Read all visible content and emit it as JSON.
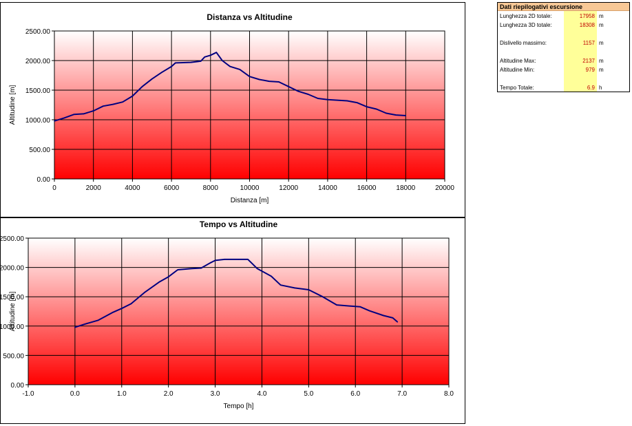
{
  "chart_data": [
    {
      "type": "line",
      "title": "Distanza vs Altitudine",
      "xlabel": "Distanza [m]",
      "ylabel": "Altitudine [m]",
      "xlim": [
        0,
        20000
      ],
      "ylim": [
        0,
        2500
      ],
      "x_ticks": [
        "0",
        "2000",
        "4000",
        "6000",
        "8000",
        "10000",
        "12000",
        "14000",
        "16000",
        "18000",
        "20000"
      ],
      "y_ticks": [
        "0.00",
        "500.00",
        "1000.00",
        "1500.00",
        "2000.00",
        "2500.00"
      ],
      "grid": true,
      "line_color": "#000080",
      "series": [
        {
          "x": [
            0,
            500,
            1000,
            1500,
            2000,
            2500,
            3000,
            3500,
            4000,
            4500,
            5000,
            5500,
            6000,
            6200,
            7000,
            7500,
            7700,
            8000,
            8300,
            8600,
            9000,
            9500,
            10000,
            10500,
            11000,
            11500,
            12000,
            12500,
            13000,
            13500,
            14000,
            14500,
            15000,
            15500,
            16000,
            16500,
            17000,
            17500,
            18000
          ],
          "y": [
            979,
            1030,
            1090,
            1100,
            1150,
            1230,
            1260,
            1300,
            1400,
            1560,
            1690,
            1800,
            1900,
            1960,
            1970,
            1990,
            2060,
            2090,
            2137,
            2000,
            1900,
            1850,
            1730,
            1680,
            1650,
            1640,
            1560,
            1480,
            1430,
            1360,
            1340,
            1330,
            1320,
            1290,
            1220,
            1180,
            1110,
            1080,
            1070
          ]
        }
      ]
    },
    {
      "type": "line",
      "title": "Tempo vs Altitudine",
      "xlabel": "Tempo [h]",
      "ylabel": "Altitudine [m]",
      "xlim": [
        -1,
        8
      ],
      "ylim": [
        0,
        2500
      ],
      "x_ticks": [
        "-1.0",
        "0.0",
        "1.0",
        "2.0",
        "3.0",
        "4.0",
        "5.0",
        "6.0",
        "7.0",
        "8.0"
      ],
      "y_ticks": [
        "0.00",
        "500.00",
        "1000.00",
        "1500.00",
        "2000.00",
        "2500.00"
      ],
      "grid": true,
      "line_color": "#000080",
      "series": [
        {
          "x": [
            0.0,
            0.2,
            0.5,
            0.8,
            1.0,
            1.2,
            1.5,
            1.8,
            2.0,
            2.2,
            2.5,
            2.7,
            2.9,
            3.0,
            3.2,
            3.5,
            3.7,
            3.9,
            4.2,
            4.4,
            4.7,
            5.0,
            5.3,
            5.6,
            5.9,
            6.1,
            6.3,
            6.6,
            6.8,
            6.9
          ],
          "y": [
            979,
            1030,
            1100,
            1230,
            1300,
            1380,
            1580,
            1750,
            1840,
            1960,
            1980,
            1990,
            2080,
            2120,
            2137,
            2137,
            2137,
            1980,
            1850,
            1700,
            1650,
            1620,
            1500,
            1360,
            1340,
            1330,
            1260,
            1180,
            1140,
            1070
          ]
        }
      ]
    }
  ],
  "summary": {
    "title": "Dati riepilogativi escursione",
    "rows": [
      {
        "label": "Lunghezza 2D totale:",
        "value": "17958",
        "unit": "m"
      },
      {
        "label": "Lunghezza 3D totale:",
        "value": "18308",
        "unit": "m"
      },
      {
        "label": "Dislivello massimo:",
        "value": "1157",
        "unit": "m"
      },
      {
        "label": "Altitudine Max:",
        "value": "2137",
        "unit": "m"
      },
      {
        "label": "Altitudine Min:",
        "value": "979",
        "unit": "m"
      },
      {
        "label": "Tempo Totale:",
        "value": "6.9",
        "unit": "h"
      }
    ]
  }
}
